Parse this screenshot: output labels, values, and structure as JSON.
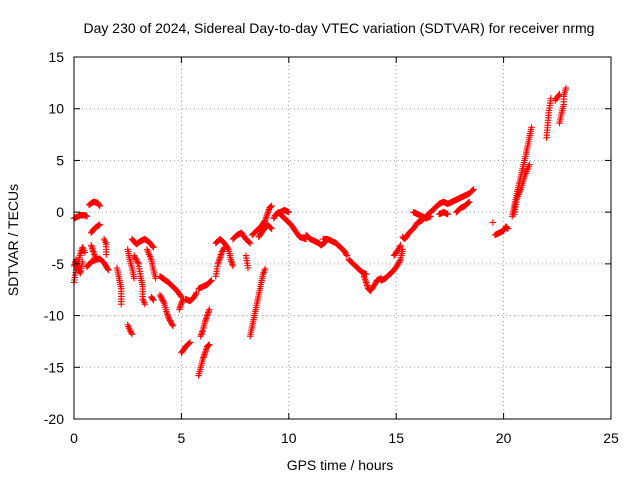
{
  "chart_data": {
    "type": "scatter",
    "title": "Day 230 of 2024, Sidereal Day-to-day VTEC variation (SDTVAR) for receiver nrmg",
    "xlabel": "GPS time / hours",
    "ylabel": "SDTVAR / TECUs",
    "xlim": [
      0,
      25
    ],
    "ylim": [
      -20,
      15
    ],
    "xticks": [
      "0",
      "5",
      "10",
      "15",
      "20",
      "25"
    ],
    "yticks": [
      "15",
      "10",
      "5",
      "0",
      "-5",
      "-10",
      "-15",
      "-20"
    ],
    "grid": true,
    "marker": "plus",
    "color": "#ff0000",
    "segments": [
      [
        [
          0.0,
          -6.8
        ],
        [
          0.1,
          -5.6
        ],
        [
          0.2,
          -4.8
        ],
        [
          0.3,
          -4.0
        ],
        [
          0.4,
          -3.4
        ],
        [
          0.5,
          -3.9
        ]
      ],
      [
        [
          0.0,
          -5.2
        ],
        [
          0.1,
          -4.6
        ],
        [
          0.2,
          -5.5
        ],
        [
          0.3,
          -5.9
        ],
        [
          0.4,
          -4.8
        ]
      ],
      [
        [
          0.0,
          -0.6
        ],
        [
          0.1,
          -0.5
        ],
        [
          0.3,
          -0.3
        ],
        [
          0.5,
          -0.3
        ],
        [
          0.6,
          -0.4
        ]
      ],
      [
        [
          0.6,
          -5.3
        ],
        [
          0.8,
          -4.8
        ],
        [
          1.0,
          -4.6
        ],
        [
          1.2,
          -4.5
        ],
        [
          1.4,
          -4.9
        ],
        [
          1.6,
          -5.6
        ]
      ],
      [
        [
          0.7,
          0.7
        ],
        [
          0.9,
          1.0
        ],
        [
          1.1,
          0.9
        ],
        [
          1.2,
          0.6
        ]
      ],
      [
        [
          0.8,
          -2.0
        ],
        [
          0.9,
          -1.7
        ],
        [
          1.0,
          -1.5
        ],
        [
          1.2,
          -1.2
        ]
      ],
      [
        [
          0.8,
          -3.2
        ],
        [
          0.9,
          -3.8
        ],
        [
          1.0,
          -4.4
        ]
      ],
      [
        [
          1.4,
          -2.6
        ],
        [
          1.5,
          -3.1
        ],
        [
          1.5,
          -3.6
        ],
        [
          1.5,
          -4.1
        ]
      ],
      [
        [
          2.0,
          -5.4
        ],
        [
          2.1,
          -6.4
        ],
        [
          2.2,
          -7.4
        ],
        [
          2.2,
          -8.4
        ],
        [
          2.2,
          -8.9
        ]
      ],
      [
        [
          2.5,
          -10.9
        ],
        [
          2.6,
          -11.4
        ],
        [
          2.7,
          -11.8
        ]
      ],
      [
        [
          2.5,
          -3.6
        ],
        [
          2.6,
          -4.6
        ],
        [
          2.7,
          -5.4
        ],
        [
          2.8,
          -6.4
        ]
      ],
      [
        [
          2.7,
          -2.6
        ],
        [
          2.9,
          -3.1
        ],
        [
          3.1,
          -2.8
        ],
        [
          3.3,
          -2.6
        ],
        [
          3.5,
          -2.9
        ],
        [
          3.7,
          -3.4
        ]
      ],
      [
        [
          2.8,
          -4.2
        ],
        [
          3.0,
          -5.0
        ],
        [
          3.1,
          -6.2
        ],
        [
          3.2,
          -7.2
        ],
        [
          3.2,
          -8.4
        ],
        [
          3.3,
          -8.9
        ]
      ],
      [
        [
          3.4,
          -3.6
        ],
        [
          3.6,
          -4.6
        ],
        [
          3.7,
          -5.6
        ],
        [
          3.8,
          -6.4
        ]
      ],
      [
        [
          3.6,
          -8.2
        ],
        [
          3.7,
          -8.5
        ]
      ],
      [
        [
          4.0,
          -6.2
        ],
        [
          4.2,
          -6.5
        ],
        [
          4.4,
          -6.8
        ],
        [
          4.6,
          -7.2
        ],
        [
          4.8,
          -7.6
        ],
        [
          5.0,
          -8.2
        ]
      ],
      [
        [
          4.0,
          -8.0
        ],
        [
          4.2,
          -8.8
        ],
        [
          4.3,
          -9.6
        ],
        [
          4.4,
          -10.2
        ],
        [
          4.5,
          -10.6
        ],
        [
          4.6,
          -11.0
        ]
      ],
      [
        [
          4.9,
          -9.4
        ],
        [
          5.0,
          -8.8
        ],
        [
          5.1,
          -8.4
        ]
      ],
      [
        [
          5.0,
          -13.6
        ],
        [
          5.2,
          -13.0
        ],
        [
          5.4,
          -12.6
        ]
      ],
      [
        [
          5.2,
          -8.4
        ],
        [
          5.4,
          -8.6
        ],
        [
          5.6,
          -8.2
        ],
        [
          5.7,
          -7.8
        ]
      ],
      [
        [
          5.8,
          -7.4
        ],
        [
          6.0,
          -7.2
        ],
        [
          6.2,
          -7.0
        ],
        [
          6.4,
          -6.6
        ]
      ],
      [
        [
          5.8,
          -15.8
        ],
        [
          5.9,
          -15.0
        ],
        [
          6.0,
          -14.2
        ],
        [
          6.1,
          -13.6
        ],
        [
          6.2,
          -13.0
        ],
        [
          6.3,
          -12.8
        ]
      ],
      [
        [
          5.9,
          -12.0
        ],
        [
          6.0,
          -11.4
        ],
        [
          6.1,
          -10.6
        ],
        [
          6.2,
          -10.0
        ],
        [
          6.3,
          -9.4
        ]
      ],
      [
        [
          6.6,
          -6.2
        ],
        [
          6.7,
          -5.0
        ],
        [
          6.8,
          -4.4
        ],
        [
          6.9,
          -3.8
        ],
        [
          7.0,
          -3.4
        ]
      ],
      [
        [
          6.6,
          -3.0
        ],
        [
          6.8,
          -2.6
        ],
        [
          7.0,
          -3.0
        ],
        [
          7.2,
          -3.6
        ],
        [
          7.3,
          -4.6
        ],
        [
          7.4,
          -5.2
        ]
      ],
      [
        [
          7.4,
          -2.6
        ],
        [
          7.6,
          -2.2
        ],
        [
          7.8,
          -2.0
        ],
        [
          8.0,
          -2.6
        ],
        [
          8.2,
          -3.0
        ]
      ],
      [
        [
          8.0,
          -4.2
        ],
        [
          8.1,
          -5.4
        ]
      ],
      [
        [
          8.2,
          -12.0
        ],
        [
          8.3,
          -11.0
        ],
        [
          8.4,
          -10.0
        ],
        [
          8.5,
          -9.0
        ],
        [
          8.6,
          -8.0
        ],
        [
          8.7,
          -7.0
        ],
        [
          8.8,
          -6.0
        ],
        [
          8.9,
          -5.5
        ]
      ],
      [
        [
          8.3,
          -2.2
        ],
        [
          8.5,
          -1.8
        ],
        [
          8.7,
          -1.4
        ],
        [
          8.9,
          -0.8
        ],
        [
          9.0,
          -0.2
        ],
        [
          9.1,
          0.4
        ],
        [
          9.2,
          0.6
        ]
      ],
      [
        [
          8.6,
          -2.4
        ],
        [
          8.8,
          -1.8
        ],
        [
          9.0,
          -1.2
        ],
        [
          9.2,
          -1.6
        ]
      ],
      [
        [
          9.3,
          -0.6
        ],
        [
          9.4,
          -0.2
        ],
        [
          9.6,
          0.0
        ],
        [
          9.8,
          0.2
        ],
        [
          10.0,
          0.0
        ]
      ],
      [
        [
          9.5,
          0.0
        ],
        [
          9.7,
          -0.4
        ],
        [
          9.9,
          -0.8
        ],
        [
          10.1,
          -1.2
        ],
        [
          10.3,
          -1.8
        ],
        [
          10.5,
          -2.4
        ],
        [
          10.8,
          -2.6
        ]
      ],
      [
        [
          10.8,
          -2.2
        ],
        [
          11.0,
          -2.6
        ],
        [
          11.2,
          -2.8
        ],
        [
          11.4,
          -3.0
        ],
        [
          11.5,
          -3.2
        ],
        [
          11.7,
          -2.9
        ]
      ],
      [
        [
          11.6,
          -2.6
        ],
        [
          11.8,
          -2.6
        ],
        [
          12.0,
          -2.8
        ],
        [
          12.2,
          -3.0
        ],
        [
          12.4,
          -3.4
        ],
        [
          12.6,
          -3.8
        ],
        [
          12.7,
          -4.2
        ]
      ],
      [
        [
          12.8,
          -4.6
        ],
        [
          13.0,
          -5.0
        ],
        [
          13.2,
          -5.4
        ],
        [
          13.4,
          -5.8
        ],
        [
          13.6,
          -6.0
        ]
      ],
      [
        [
          13.5,
          -6.2
        ],
        [
          13.6,
          -6.8
        ],
        [
          13.7,
          -7.4
        ],
        [
          13.8,
          -7.6
        ],
        [
          14.0,
          -7.0
        ],
        [
          14.1,
          -6.6
        ],
        [
          14.3,
          -6.4
        ]
      ],
      [
        [
          14.3,
          -6.6
        ],
        [
          14.5,
          -6.4
        ],
        [
          14.7,
          -6.0
        ],
        [
          14.9,
          -5.6
        ],
        [
          15.1,
          -5.0
        ],
        [
          15.2,
          -4.6
        ],
        [
          15.3,
          -3.6
        ]
      ],
      [
        [
          14.9,
          -4.2
        ],
        [
          15.1,
          -3.6
        ],
        [
          15.2,
          -3.2
        ]
      ],
      [
        [
          15.3,
          -2.4
        ],
        [
          15.4,
          -2.6
        ],
        [
          15.6,
          -2.0
        ],
        [
          15.8,
          -1.6
        ],
        [
          16.0,
          -1.0
        ],
        [
          16.2,
          -0.8
        ],
        [
          16.4,
          -0.4
        ],
        [
          16.6,
          0.0
        ]
      ],
      [
        [
          15.8,
          0.0
        ],
        [
          16.0,
          -0.2
        ],
        [
          16.2,
          -0.4
        ],
        [
          16.4,
          -0.6
        ],
        [
          16.6,
          -0.4
        ]
      ],
      [
        [
          16.6,
          0.0
        ],
        [
          16.8,
          0.4
        ],
        [
          17.0,
          0.8
        ],
        [
          17.2,
          1.0
        ],
        [
          17.4,
          0.8
        ],
        [
          17.6,
          1.0
        ],
        [
          17.8,
          1.2
        ],
        [
          18.0,
          1.4
        ],
        [
          18.2,
          1.6
        ],
        [
          18.4,
          1.8
        ],
        [
          18.6,
          2.2
        ]
      ],
      [
        [
          17.0,
          -0.2
        ],
        [
          17.2,
          0.0
        ],
        [
          17.4,
          -0.2
        ]
      ],
      [
        [
          17.8,
          0.0
        ],
        [
          18.0,
          0.4
        ],
        [
          18.2,
          0.6
        ],
        [
          18.4,
          1.0
        ]
      ],
      [
        [
          19.6,
          -2.2
        ],
        [
          19.8,
          -2.0
        ],
        [
          20.0,
          -1.8
        ],
        [
          20.1,
          -1.4
        ],
        [
          20.2,
          -1.6
        ]
      ],
      [
        [
          19.5,
          -1.0
        ]
      ],
      [
        [
          20.4,
          -0.4
        ],
        [
          20.5,
          0.6
        ],
        [
          20.6,
          1.6
        ],
        [
          20.7,
          2.6
        ],
        [
          20.8,
          3.4
        ],
        [
          20.9,
          4.4
        ],
        [
          21.0,
          5.2
        ],
        [
          21.1,
          6.2
        ],
        [
          21.2,
          7.2
        ],
        [
          21.3,
          8.2
        ]
      ],
      [
        [
          20.5,
          -0.2
        ],
        [
          20.6,
          1.2
        ],
        [
          20.8,
          2.2
        ],
        [
          21.0,
          3.6
        ],
        [
          21.2,
          4.6
        ]
      ],
      [
        [
          22.0,
          7.2
        ],
        [
          22.1,
          9.6
        ],
        [
          22.2,
          11.0
        ]
      ],
      [
        [
          22.6,
          8.6
        ],
        [
          22.7,
          9.6
        ],
        [
          22.8,
          10.4
        ],
        [
          22.8,
          11.2
        ],
        [
          22.9,
          12.0
        ]
      ],
      [
        [
          22.4,
          10.8
        ],
        [
          22.6,
          11.4
        ]
      ]
    ]
  }
}
